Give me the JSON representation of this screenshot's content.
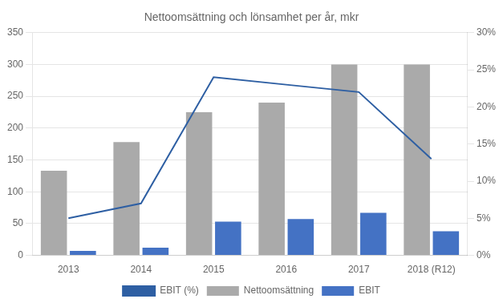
{
  "chart_data": {
    "type": "bar",
    "title": "Nettoomsättning och lönsamhet per år, mkr",
    "categories": [
      "2013",
      "2014",
      "2015",
      "2016",
      "2017",
      "2018 (R12)"
    ],
    "series": [
      {
        "name": "Nettoomsättning",
        "color": "#aaaaaa",
        "values": [
          133,
          178,
          225,
          240,
          300,
          300
        ]
      },
      {
        "name": "EBIT",
        "color": "#4472c4",
        "values": [
          7,
          12,
          53,
          57,
          67,
          38
        ]
      },
      {
        "name": "EBIT (%)",
        "type": "line",
        "color": "#2e5fa3",
        "axis": "y2",
        "values": [
          5.0,
          7.0,
          24.0,
          23.0,
          22.0,
          13.0
        ]
      }
    ],
    "ylim": [
      0,
      350
    ],
    "yticks": [
      0,
      50,
      100,
      150,
      200,
      250,
      300,
      350
    ],
    "y2lim": [
      0,
      30
    ],
    "y2ticks": [
      {
        "value": 0,
        "label": "0%"
      },
      {
        "value": 5,
        "label": "5%"
      },
      {
        "value": 10,
        "label": "10%"
      },
      {
        "value": 15,
        "label": "15%"
      },
      {
        "value": 20,
        "label": "20%"
      },
      {
        "value": 25,
        "label": "25%"
      },
      {
        "value": 30,
        "label": "30%"
      }
    ],
    "grid": true,
    "legend": "bottom"
  }
}
